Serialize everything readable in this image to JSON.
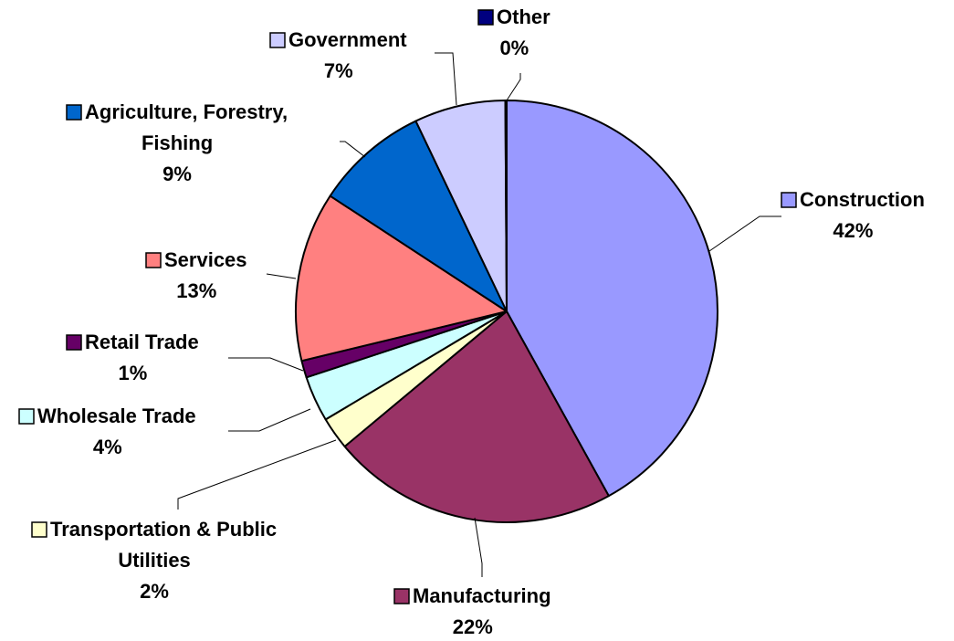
{
  "chart_data": {
    "type": "pie",
    "title": "",
    "start_angle_deg": 0,
    "direction": "clockwise",
    "slices": [
      {
        "label": "Construction",
        "value": 42,
        "percent_label": "42%",
        "color": "#9999ff"
      },
      {
        "label": "Manufacturing",
        "value": 22,
        "percent_label": "22%",
        "color": "#993366"
      },
      {
        "label": "Transportation & Public Utilities",
        "label_lines": [
          "Transportation & Public",
          "Utilities"
        ],
        "value": 2.5,
        "percent_label": "2%",
        "color": "#ffffcc"
      },
      {
        "label": "Wholesale Trade",
        "value": 3.5,
        "percent_label": "4%",
        "color": "#ccffff"
      },
      {
        "label": "Retail Trade",
        "value": 1.3,
        "percent_label": "1%",
        "color": "#660066"
      },
      {
        "label": "Services",
        "value": 13,
        "percent_label": "13%",
        "color": "#ff8080"
      },
      {
        "label": "Agriculture, Forestry, Fishing",
        "label_lines": [
          "Agriculture, Forestry,",
          "Fishing"
        ],
        "value": 8.7,
        "percent_label": "9%",
        "color": "#0066cc"
      },
      {
        "label": "Government",
        "value": 7,
        "percent_label": "7%",
        "color": "#ccccff"
      },
      {
        "label": "Other",
        "value": 0.1,
        "percent_label": "0%",
        "color": "#000080"
      }
    ],
    "legend": "none",
    "data_labels": "category name and percentage, with leader lines"
  }
}
